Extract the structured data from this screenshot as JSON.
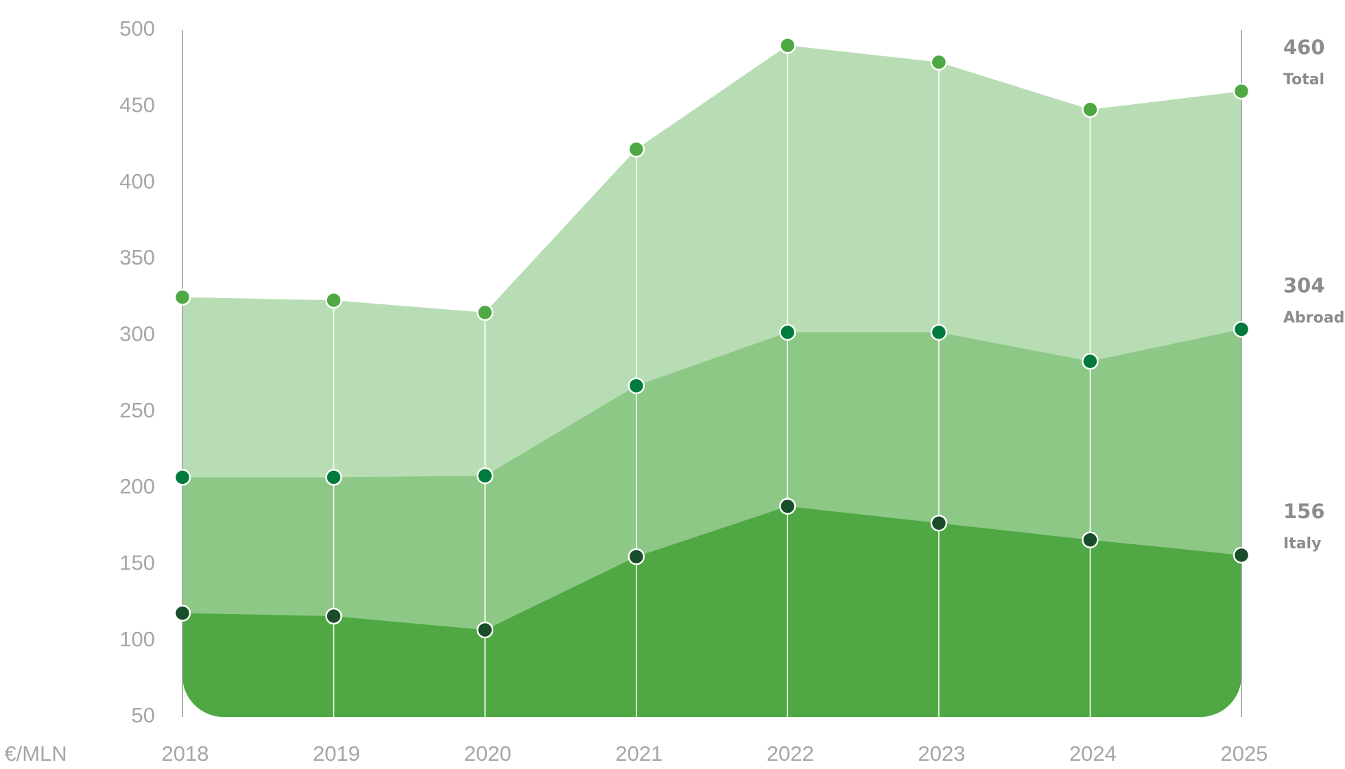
{
  "chart_data": {
    "type": "area",
    "y_label": "€/MLN",
    "categories": [
      "2018",
      "2019",
      "2020",
      "2021",
      "2022",
      "2023",
      "2024",
      "2025"
    ],
    "series": [
      {
        "name": "Total",
        "color": "#b8ddb4",
        "marker_color": "#4ea843",
        "values": [
          325,
          323,
          315,
          422,
          490,
          479,
          448,
          460
        ]
      },
      {
        "name": "Abroad",
        "color": "#8dc887",
        "marker_color": "#007a3d",
        "values": [
          207,
          207,
          208,
          267,
          302,
          302,
          283,
          304
        ]
      },
      {
        "name": "Italy",
        "color": "#4fa843",
        "marker_color": "#1a4d2a",
        "values": [
          118,
          116,
          107,
          155,
          188,
          177,
          166,
          156
        ]
      }
    ],
    "ylim": [
      50,
      500
    ],
    "yticks": [
      50,
      100,
      150,
      200,
      250,
      300,
      350,
      400,
      450,
      500
    ]
  }
}
